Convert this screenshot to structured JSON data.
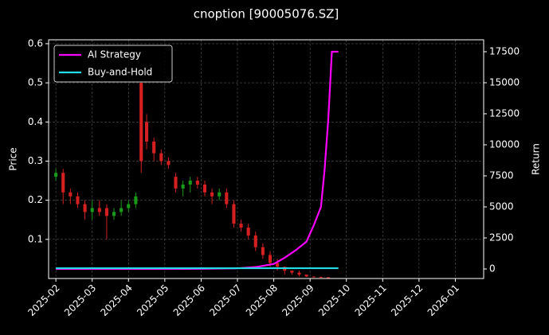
{
  "chart_data": {
    "type": "candlestick-lines",
    "title": "cnoption [90005076.SZ]",
    "ylabel": "Price",
    "y2label": "Return",
    "xlim": [
      -0.2,
      11.78
    ],
    "xticks": [
      {
        "value": 0,
        "label": "2025-02"
      },
      {
        "value": 1,
        "label": "2025-03"
      },
      {
        "value": 2,
        "label": "2025-04"
      },
      {
        "value": 3,
        "label": "2025-05"
      },
      {
        "value": 4,
        "label": "2025-06"
      },
      {
        "value": 5,
        "label": "2025-07"
      },
      {
        "value": 6,
        "label": "2025-08"
      },
      {
        "value": 7,
        "label": "2025-09"
      },
      {
        "value": 8,
        "label": "2025-10"
      },
      {
        "value": 9,
        "label": "2025-11"
      },
      {
        "value": 10,
        "label": "2025-12"
      },
      {
        "value": 11,
        "label": "2026-01"
      }
    ],
    "ylim": [
      0,
      0.61
    ],
    "yticks": [
      0.1,
      0.2,
      0.3,
      0.4,
      0.5,
      0.6
    ],
    "y2lim": [
      -770,
      18460
    ],
    "y2ticks": [
      0,
      2500,
      5000,
      7500,
      10000,
      12500,
      15000,
      17500
    ],
    "grid": true,
    "legend": "upper left",
    "up_color": "#1a9a1a",
    "down_color": "#d42020",
    "candles": {
      "x": [
        0,
        0.2,
        0.4,
        0.6,
        0.8,
        1.0,
        1.2,
        1.4,
        1.6,
        1.8,
        2.0,
        2.2,
        2.35,
        2.5,
        2.7,
        2.9,
        3.1,
        3.3,
        3.5,
        3.7,
        3.9,
        4.1,
        4.3,
        4.5,
        4.7,
        4.9,
        5.1,
        5.3,
        5.5,
        5.7,
        5.9,
        6.1,
        6.3,
        6.5,
        6.7,
        6.9,
        7.1,
        7.3,
        7.5
      ],
      "open": [
        0.26,
        0.27,
        0.22,
        0.21,
        0.19,
        0.17,
        0.18,
        0.18,
        0.16,
        0.17,
        0.18,
        0.19,
        0.5,
        0.4,
        0.35,
        0.32,
        0.3,
        0.26,
        0.23,
        0.24,
        0.25,
        0.24,
        0.22,
        0.21,
        0.22,
        0.19,
        0.14,
        0.13,
        0.11,
        0.08,
        0.06,
        0.04,
        0.03,
        0.02,
        0.015,
        0.01,
        0.005,
        0.004,
        0.003
      ],
      "high": [
        0.28,
        0.28,
        0.23,
        0.22,
        0.2,
        0.2,
        0.2,
        0.19,
        0.18,
        0.2,
        0.2,
        0.22,
        0.5,
        0.42,
        0.36,
        0.33,
        0.31,
        0.27,
        0.25,
        0.26,
        0.26,
        0.25,
        0.23,
        0.23,
        0.23,
        0.2,
        0.15,
        0.14,
        0.12,
        0.09,
        0.07,
        0.05,
        0.03,
        0.02,
        0.02,
        0.01,
        0.006,
        0.005,
        0.004
      ],
      "low": [
        0.25,
        0.19,
        0.19,
        0.18,
        0.15,
        0.15,
        0.16,
        0.1,
        0.15,
        0.16,
        0.17,
        0.18,
        0.27,
        0.33,
        0.3,
        0.29,
        0.28,
        0.22,
        0.21,
        0.22,
        0.23,
        0.21,
        0.19,
        0.2,
        0.18,
        0.13,
        0.12,
        0.1,
        0.07,
        0.05,
        0.03,
        0.02,
        0.01,
        0.01,
        0.005,
        0.004,
        0.003,
        0.002,
        0.001
      ],
      "close": [
        0.27,
        0.22,
        0.21,
        0.19,
        0.17,
        0.18,
        0.17,
        0.16,
        0.17,
        0.18,
        0.19,
        0.21,
        0.3,
        0.35,
        0.32,
        0.3,
        0.29,
        0.23,
        0.24,
        0.25,
        0.24,
        0.22,
        0.21,
        0.22,
        0.19,
        0.14,
        0.13,
        0.11,
        0.08,
        0.06,
        0.04,
        0.03,
        0.02,
        0.015,
        0.01,
        0.005,
        0.004,
        0.003,
        0.002
      ]
    },
    "series": [
      {
        "name": "AI Strategy",
        "color": "#ff00ff",
        "axis": "y2",
        "x": [
          0,
          1,
          2,
          3,
          4,
          5,
          5.5,
          6,
          6.3,
          6.6,
          6.9,
          7.1,
          7.3,
          7.4,
          7.5,
          7.6,
          7.78
        ],
        "values": [
          0,
          0,
          0,
          0,
          10,
          50,
          150,
          400,
          900,
          1500,
          2200,
          3500,
          5000,
          8000,
          12000,
          17500,
          17500
        ]
      },
      {
        "name": "Buy-and-Hold",
        "color": "#22dde8",
        "axis": "y2",
        "x": [
          0,
          7.78
        ],
        "values": [
          60,
          60
        ]
      }
    ]
  }
}
